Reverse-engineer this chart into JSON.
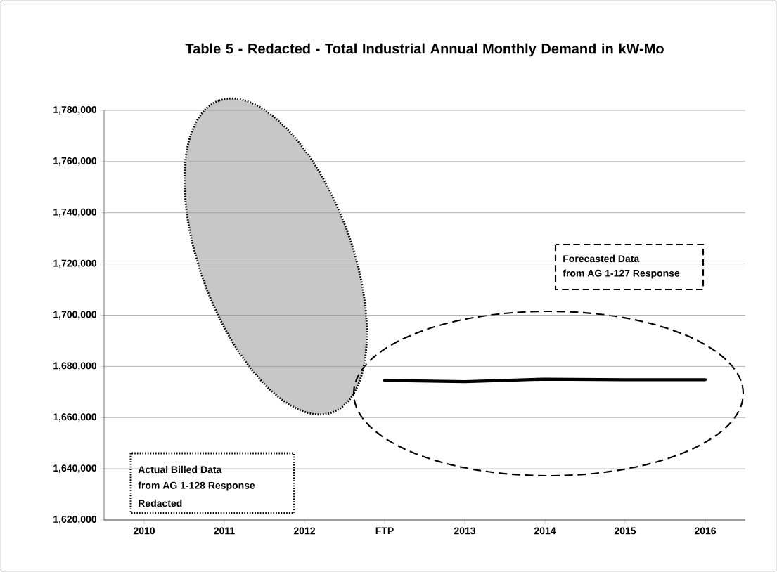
{
  "chart_data": {
    "type": "line",
    "title": "Table 5 - Redacted - Total Industrial Annual Monthly Demand in kW-Mo",
    "categories": [
      "2010",
      "2011",
      "2012",
      "FTP",
      "2013",
      "2014",
      "2015",
      "2016"
    ],
    "values": [
      null,
      null,
      null,
      1674500,
      1674000,
      1675000,
      1674800,
      1674800
    ],
    "color": "#000000",
    "ylim": [
      1620000,
      1780000
    ],
    "yticks": [
      {
        "value": 1620000,
        "label": "1,620,000"
      },
      {
        "value": 1640000,
        "label": "1,640,000"
      },
      {
        "value": 1660000,
        "label": "1,660,000"
      },
      {
        "value": 1680000,
        "label": "1,680,000"
      },
      {
        "value": 1700000,
        "label": "1,700,000"
      },
      {
        "value": 1720000,
        "label": "1,720,000"
      },
      {
        "value": 1740000,
        "label": "1,740,000"
      },
      {
        "value": 1760000,
        "label": "1,760,000"
      },
      {
        "value": 1780000,
        "label": "1,780,000"
      }
    ],
    "grid": "y",
    "annotations": [
      "Forecasted Data",
      "from AG 1-127 Response",
      "Actual Billed Data",
      "from AG 1-128 Response",
      "Redacted"
    ]
  }
}
